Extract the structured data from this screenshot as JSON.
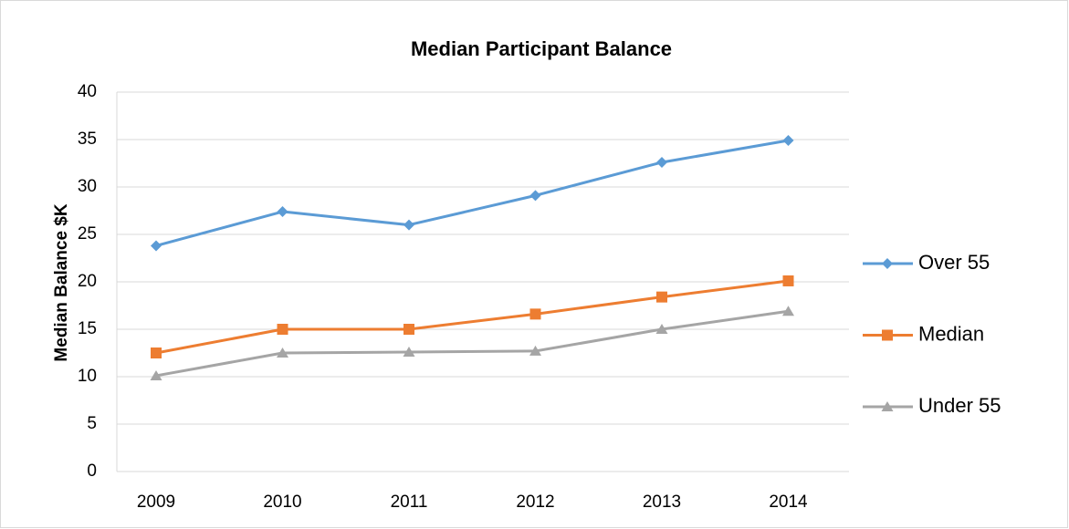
{
  "chart_data": {
    "type": "line",
    "title": "Median Participant Balance",
    "y_label": "Median  Balance $K",
    "categories": [
      "2009",
      "2010",
      "2011",
      "2012",
      "2013",
      "2014"
    ],
    "series": [
      {
        "name": "Over 55",
        "color": "#5b9bd5",
        "marker": "diamond",
        "values": [
          23.8,
          27.4,
          26.0,
          29.1,
          32.6,
          34.9
        ]
      },
      {
        "name": "Median",
        "color": "#ed7d31",
        "marker": "square",
        "values": [
          12.5,
          15.0,
          15.0,
          16.6,
          18.4,
          20.1
        ]
      },
      {
        "name": "Under 55",
        "color": "#a5a5a5",
        "marker": "triangle",
        "values": [
          10.1,
          12.5,
          12.6,
          12.7,
          15.0,
          16.9
        ]
      }
    ],
    "ylim": [
      0,
      40
    ],
    "yticks": [
      0,
      5,
      10,
      15,
      20,
      25,
      30,
      35,
      40
    ],
    "grid": true,
    "legend": "right"
  }
}
